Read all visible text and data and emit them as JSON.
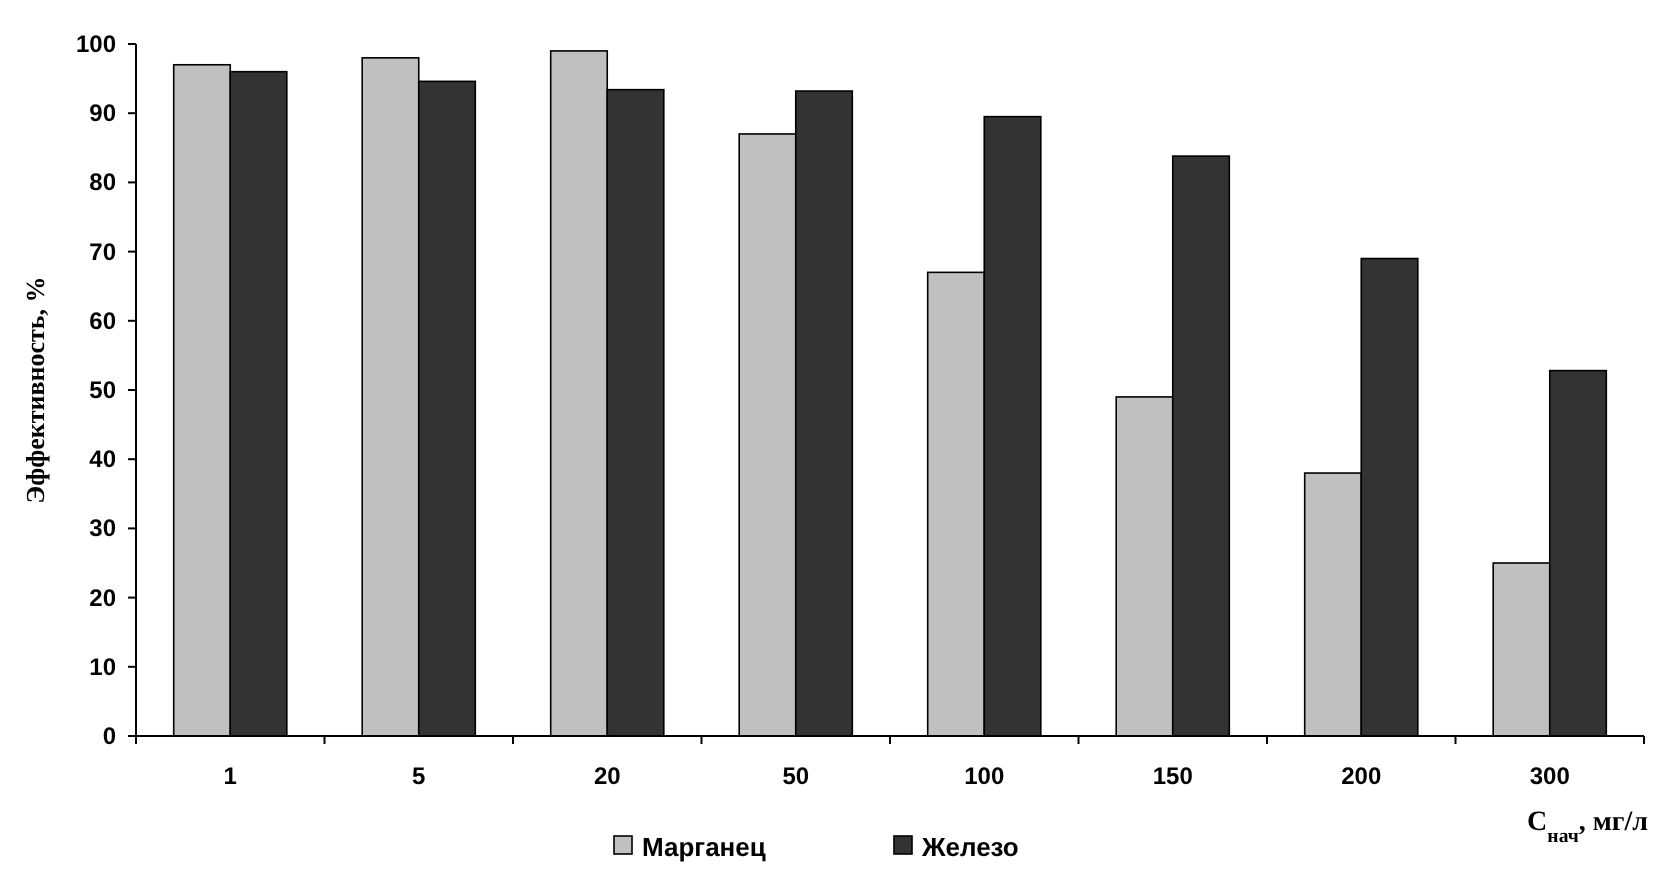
{
  "chart_data": {
    "type": "bar",
    "categories": [
      "1",
      "5",
      "20",
      "50",
      "100",
      "150",
      "200",
      "300"
    ],
    "series": [
      {
        "name": "Марганец",
        "color": "#c0c0c0",
        "values": [
          97,
          98,
          99,
          87,
          67,
          49,
          38,
          25
        ]
      },
      {
        "name": "Железо",
        "color": "#333333",
        "values": [
          96,
          94.6,
          93.4,
          93.2,
          89.5,
          83.8,
          69,
          52.8
        ]
      }
    ],
    "ylabel": "Эффективность, %",
    "xlabel": "C$_{нач}$, мг/л",
    "ylim": [
      0,
      100
    ],
    "yticks": [
      0,
      10,
      20,
      30,
      40,
      50,
      60,
      70,
      80,
      90,
      100
    ],
    "grid": false,
    "legend": "bottom"
  }
}
